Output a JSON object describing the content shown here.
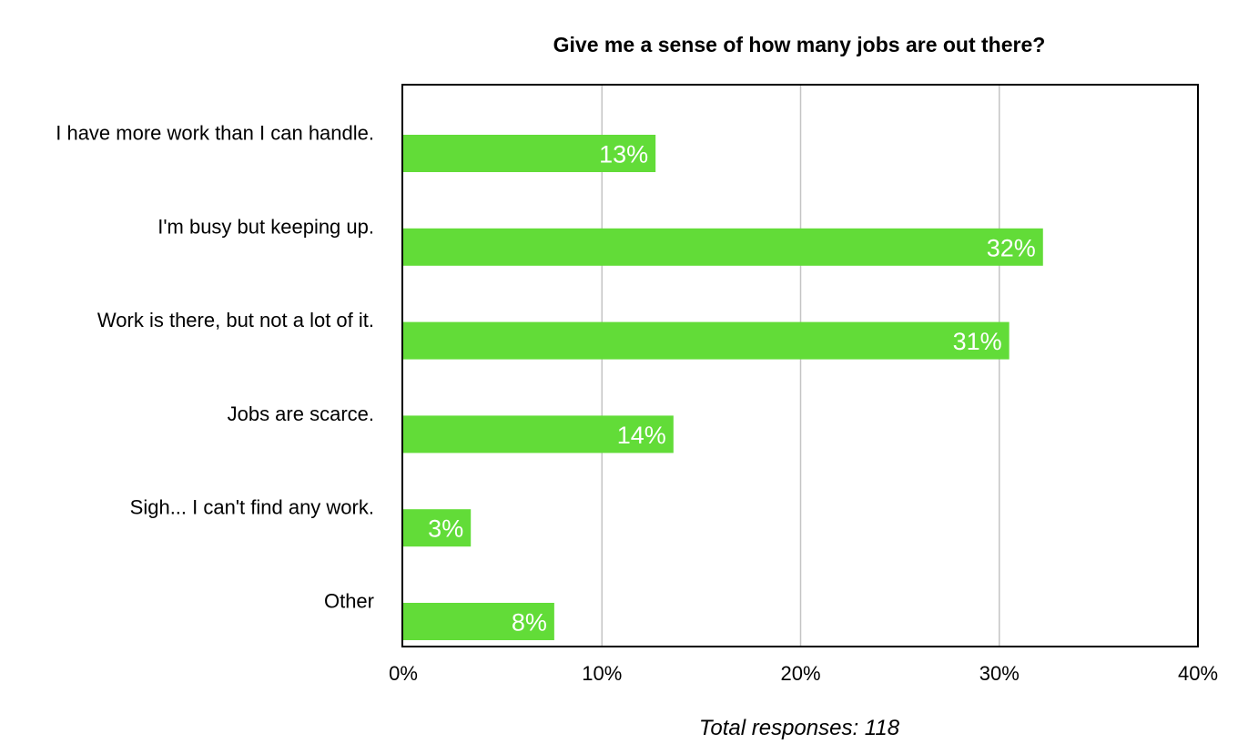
{
  "chart_data": {
    "type": "bar",
    "orientation": "horizontal",
    "title": "Give me a sense of how many jobs are out there?",
    "categories": [
      "I have more work than I can handle.",
      "I'm busy but keeping up.",
      "Work is there, but not a lot of it.",
      "Jobs are scarce.",
      "Sigh... I can't find any work.",
      "Other"
    ],
    "values": [
      12.7,
      32.2,
      30.5,
      13.6,
      3.4,
      7.6
    ],
    "data_labels": [
      "13%",
      "32%",
      "31%",
      "14%",
      "3%",
      "8%"
    ],
    "xlim": [
      0,
      40
    ],
    "x_ticks": [
      0,
      10,
      20,
      30,
      40
    ],
    "x_tick_labels": [
      "0%",
      "10%",
      "20%",
      "30%",
      "40%"
    ],
    "grid": "vertical",
    "bar_color": "#62dc38",
    "legend": "none",
    "annotation": "Total responses: 118"
  }
}
